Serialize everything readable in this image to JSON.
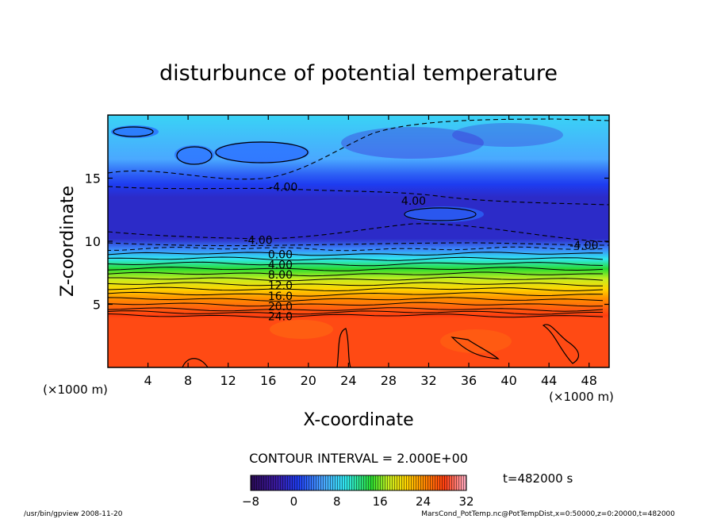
{
  "chart_data": {
    "type": "heatmap",
    "title": "disturbunce of potential temperature",
    "xlabel": "X-coordinate",
    "ylabel": "Z-coordinate",
    "x_unit": "(×1000 m)",
    "z_unit": "(×1000 m)",
    "xlim": [
      0,
      50
    ],
    "ylim": [
      0,
      20
    ],
    "x_ticks": [
      4,
      8,
      12,
      16,
      20,
      24,
      28,
      32,
      36,
      40,
      44,
      48
    ],
    "y_ticks": [
      5,
      10,
      15
    ],
    "contour_interval_label": "CONTOUR INTERVAL = 2.000E+00",
    "time_label": "t=482000 s",
    "colorbar": {
      "min": -8,
      "max": 32,
      "ticks": [
        "−8",
        "0",
        "8",
        "16",
        "24",
        "32"
      ]
    },
    "contour_labels": [
      {
        "text": "-4.00",
        "x": 17.5,
        "z": 14.3
      },
      {
        "text": "4.00",
        "x": 30.5,
        "z": 13.2
      },
      {
        "text": "-4.00",
        "x": 15.0,
        "z": 10.1
      },
      {
        "text": "-4.00",
        "x": 47.5,
        "z": 9.7
      },
      {
        "text": "0.00",
        "x": 17.2,
        "z": 8.95
      },
      {
        "text": "4.00",
        "x": 17.2,
        "z": 8.15
      },
      {
        "text": "8.00",
        "x": 17.2,
        "z": 7.35
      },
      {
        "text": "12.0",
        "x": 17.2,
        "z": 6.5
      },
      {
        "text": "16.0",
        "x": 17.2,
        "z": 5.65
      },
      {
        "text": "20.0",
        "x": 17.2,
        "z": 4.85
      },
      {
        "text": "24.0",
        "x": 17.2,
        "z": 4.05
      }
    ],
    "stratification": [
      {
        "z": 0.0,
        "value": 28
      },
      {
        "z": 3.9,
        "value": 28
      },
      {
        "z": 4.1,
        "value": 26
      },
      {
        "z": 4.6,
        "value": 22
      },
      {
        "z": 5.4,
        "value": 18
      },
      {
        "z": 6.2,
        "value": 14
      },
      {
        "z": 7.0,
        "value": 10
      },
      {
        "z": 7.8,
        "value": 6
      },
      {
        "z": 8.6,
        "value": 2
      },
      {
        "z": 9.4,
        "value": -2
      },
      {
        "z": 10.2,
        "value": -5
      },
      {
        "z": 13.5,
        "value": -5
      },
      {
        "z": 14.5,
        "value": -4
      },
      {
        "z": 15.3,
        "value": -3
      },
      {
        "z": 16.5,
        "value": -1
      },
      {
        "z": 20.0,
        "value": 1
      }
    ],
    "contour_levels": [
      -4,
      -2,
      0,
      2,
      4,
      6,
      8,
      10,
      12,
      14,
      16,
      18,
      20,
      22,
      24,
      26
    ],
    "grid": false
  },
  "footer": {
    "left": "/usr/bin/gpview   2008-11-20",
    "right": "MarsCond_PotTemp.nc@PotTempDist,x=0:50000,z=0:20000,t=482000"
  }
}
